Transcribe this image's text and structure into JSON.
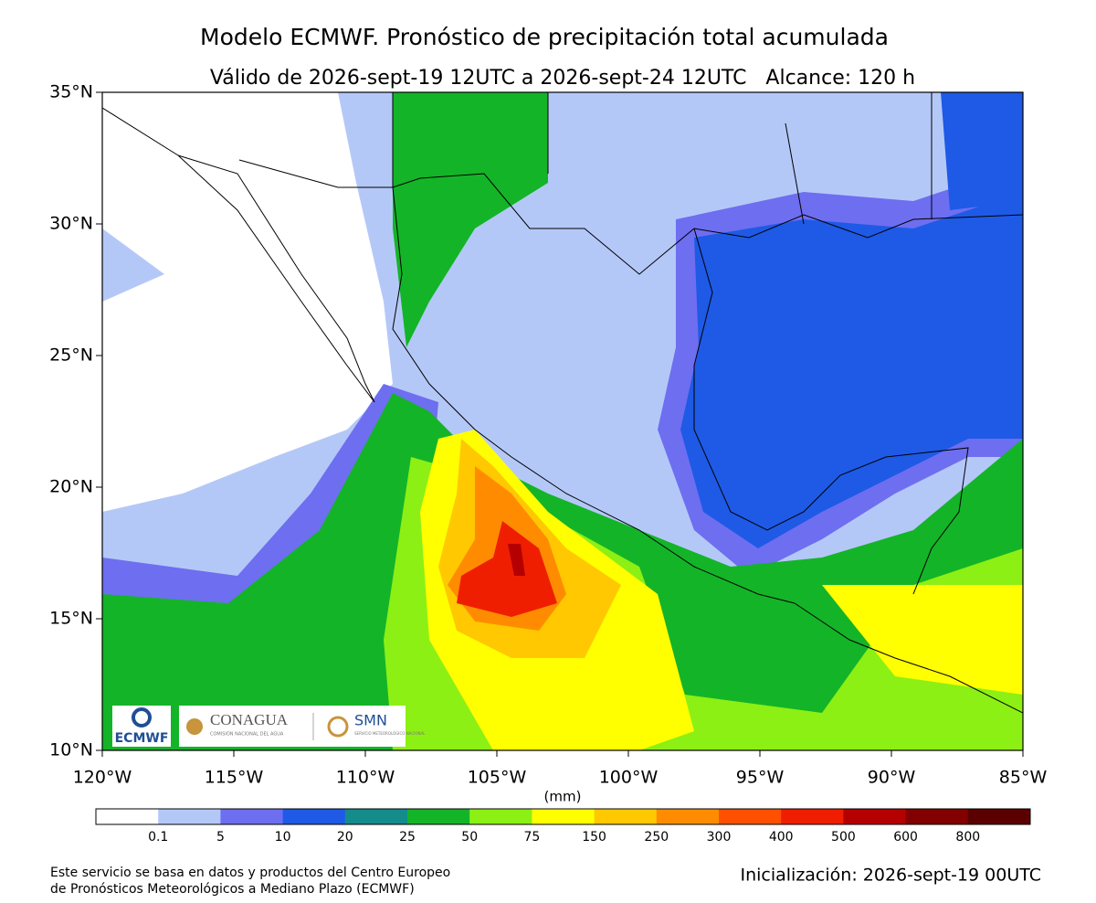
{
  "title": "Modelo ECMWF. Pronóstico de precipitación total acumulada",
  "subtitle": "Válido de 2026-sept-19 12UTC a 2026-sept-24 12UTC   Alcance: 120 h",
  "map": {
    "xlim": [
      -120,
      -85
    ],
    "ylim": [
      10,
      35
    ],
    "xticks": [
      {
        "value": -120,
        "label": "120°W"
      },
      {
        "value": -115,
        "label": "115°W"
      },
      {
        "value": -110,
        "label": "110°W"
      },
      {
        "value": -105,
        "label": "105°W"
      },
      {
        "value": -100,
        "label": "100°W"
      },
      {
        "value": -95,
        "label": "95°W"
      },
      {
        "value": -90,
        "label": "90°W"
      },
      {
        "value": -85,
        "label": "85°W"
      }
    ],
    "yticks": [
      {
        "value": 10,
        "label": "10°N"
      },
      {
        "value": 15,
        "label": "15°N"
      },
      {
        "value": 20,
        "label": "20°N"
      },
      {
        "value": 25,
        "label": "25°N"
      },
      {
        "value": 30,
        "label": "30°N"
      },
      {
        "value": 35,
        "label": "35°N"
      }
    ]
  },
  "colorbar": {
    "unit": "(mm)",
    "colors": [
      "#ffffff",
      "#b4c8f8",
      "#6e6ef0",
      "#1e5ae6",
      "#148c8c",
      "#14b428",
      "#8cf014",
      "#ffff00",
      "#ffc800",
      "#ff8c00",
      "#ff5000",
      "#f01e00",
      "#b40000",
      "#820000",
      "#5a0000"
    ],
    "levels": [
      0.1,
      5,
      10,
      20,
      25,
      50,
      75,
      150,
      250,
      300,
      400,
      500,
      600,
      800
    ]
  },
  "logos": {
    "ecmwf": "ECMWF",
    "conagua": "CONAGUA",
    "conagua_sub": "COMISIÓN NACIONAL DEL AGUA",
    "smn": "SMN",
    "smn_sub": "SERVICIO METEOROLÓGICO NACIONAL"
  },
  "footer": {
    "source_line1": "Este servicio se basa en datos y productos del Centro Europeo",
    "source_line2": "de Pronósticos Meteorológicos a Mediano Plazo (ECMWF)",
    "init": "Inicialización: 2026-sept-19 00UTC"
  }
}
